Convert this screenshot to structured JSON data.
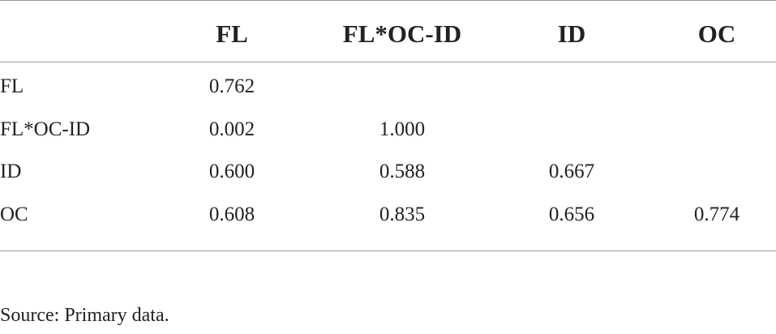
{
  "table": {
    "columns": [
      "FL",
      "FL*OC-ID",
      "ID",
      "OC"
    ],
    "rows": [
      {
        "label": "FL",
        "values": [
          "0.762"
        ]
      },
      {
        "label": "FL*OC-ID",
        "values": [
          "0.002",
          "1.000"
        ]
      },
      {
        "label": "ID",
        "values": [
          "0.600",
          "0.588",
          "0.667"
        ]
      },
      {
        "label": "OC",
        "values": [
          "0.608",
          "0.835",
          "0.656",
          "0.774"
        ]
      }
    ]
  },
  "footnote": "Source: Primary data."
}
